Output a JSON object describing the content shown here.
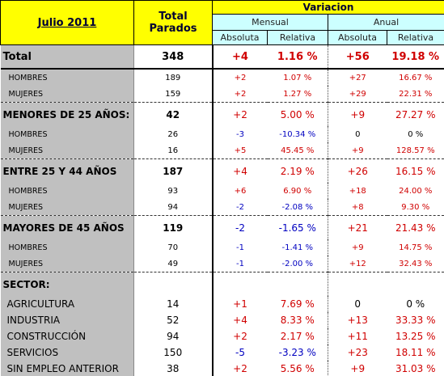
{
  "header": {
    "period": "Julio 2011",
    "total": "Total Parados",
    "variation": "Variacion",
    "monthly": "Mensual",
    "annual": "Anual",
    "absolute": "Absoluta",
    "relative": "Relativa"
  },
  "table": {
    "total": [
      "Total",
      "348",
      "+4",
      "1.16 %",
      "+56",
      "19.18 %"
    ],
    "rows_after_total": [
      [
        "HOMBRES",
        "189",
        "+2",
        "1.07 %",
        "+27",
        "16.67 %"
      ],
      [
        "MUJERES",
        "159",
        "+2",
        "1.27 %",
        "+29",
        "22.31 %"
      ]
    ],
    "groups": [
      {
        "heading": [
          "MENORES DE 25 AÑOS:",
          "42",
          "+2",
          "5.00 %",
          "+9",
          "27.27 %"
        ],
        "rows": [
          [
            "HOMBRES",
            "26",
            "-3",
            "-10.34 %",
            "0",
            "0 %"
          ],
          [
            "MUJERES",
            "16",
            "+5",
            "45.45 %",
            "+9",
            "128.57 %"
          ]
        ]
      },
      {
        "heading": [
          "ENTRE 25 Y 44 AÑOS",
          "187",
          "+4",
          "2.19 %",
          "+26",
          "16.15 %"
        ],
        "rows": [
          [
            "HOMBRES",
            "93",
            "+6",
            "6.90 %",
            "+18",
            "24.00 %"
          ],
          [
            "MUJERES",
            "94",
            "-2",
            "-2.08 %",
            "+8",
            "9.30 %"
          ]
        ]
      },
      {
        "heading": [
          "MAYORES DE 45 AÑOS",
          "119",
          "-2",
          "-1.65 %",
          "+21",
          "21.43 %"
        ],
        "rows": [
          [
            "HOMBRES",
            "70",
            "-1",
            "-1.41 %",
            "+9",
            "14.75 %"
          ],
          [
            "MUJERES",
            "49",
            "-1",
            "-2.00 %",
            "+12",
            "32.43 %"
          ]
        ]
      },
      {
        "heading": [
          "SECTOR:"
        ],
        "rows": [
          [
            "AGRICULTURA",
            "14",
            "+1",
            "7.69 %",
            "0",
            "0 %"
          ],
          [
            "INDUSTRIA",
            "52",
            "+4",
            "8.33 %",
            "+13",
            "33.33 %"
          ],
          [
            "CONSTRUCCIÓN",
            "94",
            "+2",
            "2.17 %",
            "+11",
            "13.25 %"
          ],
          [
            "SERVICIOS",
            "150",
            "-5",
            "-3.23 %",
            "+23",
            "18.11 %"
          ],
          [
            "SIN EMPLEO ANTERIOR",
            "38",
            "+2",
            "5.56 %",
            "+9",
            "31.03 %"
          ]
        ]
      }
    ]
  }
}
